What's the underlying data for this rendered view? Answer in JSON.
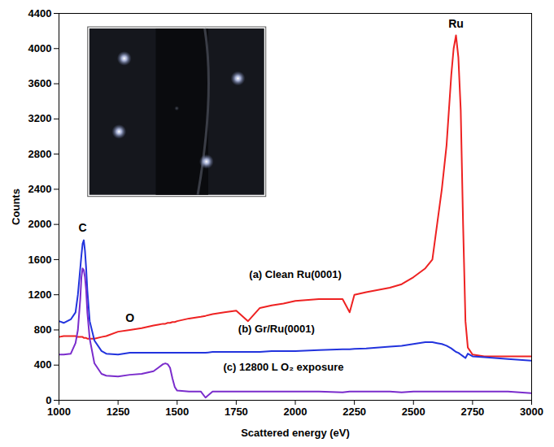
{
  "chart_data": {
    "type": "line",
    "x_label": "Scattered energy (eV)",
    "y_label": "Counts",
    "xlim": [
      1000,
      3000
    ],
    "xticks": [
      1000,
      1250,
      1500,
      1750,
      2000,
      2250,
      2500,
      2750,
      3000
    ],
    "ylim": [
      0,
      4400
    ],
    "yticks": [
      0,
      400,
      800,
      1200,
      1600,
      2000,
      2400,
      2800,
      3200,
      3600,
      4000,
      4400
    ],
    "grid": false,
    "x": [
      1000,
      1020,
      1050,
      1070,
      1080,
      1090,
      1095,
      1100,
      1105,
      1110,
      1115,
      1120,
      1130,
      1150,
      1180,
      1200,
      1250,
      1300,
      1350,
      1400,
      1420,
      1440,
      1450,
      1460,
      1470,
      1480,
      1490,
      1500,
      1550,
      1600,
      1620,
      1650,
      1700,
      1750,
      1800,
      1850,
      1900,
      1950,
      2000,
      2100,
      2200,
      2230,
      2250,
      2300,
      2400,
      2450,
      2500,
      2550,
      2580,
      2600,
      2620,
      2640,
      2660,
      2670,
      2680,
      2690,
      2700,
      2710,
      2720,
      2730,
      2750,
      2800,
      2900,
      3000
    ],
    "series": [
      {
        "name": "(a) Clean Ru(0001)",
        "color": "#ee2222",
        "label_x": 2000,
        "label_y": 1430,
        "values": [
          720,
          730,
          730,
          730,
          720,
          720,
          720,
          720,
          710,
          710,
          710,
          700,
          700,
          700,
          720,
          730,
          780,
          800,
          820,
          850,
          860,
          870,
          870,
          880,
          880,
          890,
          890,
          900,
          930,
          950,
          960,
          980,
          1000,
          1020,
          900,
          1050,
          1080,
          1100,
          1130,
          1150,
          1150,
          1000,
          1200,
          1230,
          1280,
          1320,
          1400,
          1500,
          1600,
          2000,
          2400,
          2900,
          3700,
          4000,
          4150,
          3900,
          3300,
          2000,
          900,
          600,
          520,
          500,
          500,
          500
        ]
      },
      {
        "name": "(b) Gr/Ru(0001)",
        "color": "#2233dd",
        "label_x": 1920,
        "label_y": 810,
        "values": [
          900,
          880,
          920,
          1000,
          1200,
          1500,
          1650,
          1780,
          1820,
          1700,
          1500,
          1250,
          900,
          680,
          560,
          530,
          520,
          540,
          540,
          540,
          540,
          540,
          540,
          540,
          540,
          540,
          540,
          540,
          540,
          540,
          540,
          550,
          550,
          550,
          550,
          550,
          560,
          560,
          560,
          570,
          580,
          580,
          585,
          590,
          610,
          620,
          640,
          660,
          660,
          650,
          640,
          620,
          590,
          570,
          550,
          540,
          520,
          500,
          480,
          530,
          500,
          490,
          470,
          450
        ]
      },
      {
        "name": "(c) 12800 L O₂ exposure",
        "color": "#7a2ccc",
        "label_x": 1950,
        "label_y": 380,
        "values": [
          520,
          520,
          530,
          650,
          800,
          1150,
          1400,
          1500,
          1480,
          1400,
          1250,
          1000,
          700,
          420,
          300,
          280,
          270,
          290,
          300,
          330,
          370,
          410,
          420,
          410,
          370,
          250,
          150,
          110,
          100,
          100,
          30,
          100,
          100,
          100,
          100,
          100,
          100,
          100,
          100,
          100,
          90,
          100,
          100,
          100,
          100,
          90,
          100,
          100,
          100,
          100,
          100,
          100,
          100,
          100,
          100,
          100,
          100,
          100,
          100,
          100,
          100,
          100,
          100,
          80
        ]
      }
    ],
    "annotations": [
      {
        "text": "C",
        "x": 1100,
        "y": 1960
      },
      {
        "text": "O",
        "x": 1300,
        "y": 930
      },
      {
        "text": "Ru",
        "x": 2680,
        "y": 4280
      }
    ]
  }
}
